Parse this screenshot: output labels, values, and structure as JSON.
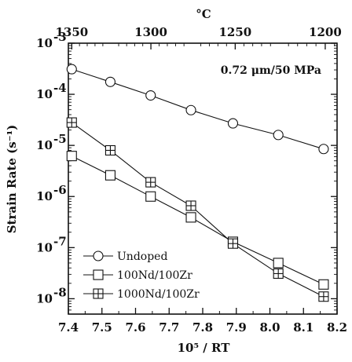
{
  "chart_data": {
    "type": "scatter",
    "xlabel": "10⁵ / RT",
    "ylabel": "Strain Rate (s⁻¹)",
    "top_axis_label": "°C",
    "annotation": "0.72 μm/50 MPa",
    "x_range": [
      7.4,
      8.2
    ],
    "x_ticks": [
      7.4,
      7.5,
      7.6,
      7.7,
      7.8,
      7.9,
      8.0,
      8.1,
      8.2
    ],
    "x_tick_labels": [
      "7.4",
      "7.5",
      "7.6",
      "7.7",
      "7.8",
      "7.9",
      "8.0",
      "8.1",
      "8.2"
    ],
    "y_scale": "log",
    "y_range": [
      5e-09,
      0.001
    ],
    "y_ticks": [
      {
        "value": 0.001,
        "exp": "-3"
      },
      {
        "value": 0.0001,
        "exp": "-4"
      },
      {
        "value": 1e-05,
        "exp": "-5"
      },
      {
        "value": 1e-06,
        "exp": "-6"
      },
      {
        "value": 1e-07,
        "exp": "-7"
      },
      {
        "value": 1e-08,
        "exp": "-8"
      }
    ],
    "y_tick_base": "10",
    "top_ticks": [
      {
        "celsius": 1350,
        "label": "1350"
      },
      {
        "celsius": 1300,
        "label": "1300"
      },
      {
        "celsius": 1250,
        "label": "1250"
      },
      {
        "celsius": 1200,
        "label": "1200"
      }
    ],
    "legend_position": "bottom-left",
    "series": [
      {
        "name": "Undoped",
        "marker": "circle",
        "x": [
          7.41,
          7.525,
          7.645,
          7.765,
          7.89,
          8.025,
          8.16
        ],
        "y": [
          0.00031,
          0.000175,
          9.5e-05,
          4.9e-05,
          2.7e-05,
          1.6e-05,
          8.5e-06
        ]
      },
      {
        "name": "100Nd/100Zr",
        "marker": "square",
        "x": [
          7.41,
          7.525,
          7.645,
          7.765,
          7.89,
          8.025,
          8.16
        ],
        "y": [
          6.2e-06,
          2.6e-06,
          1e-06,
          3.9e-07,
          1.3e-07,
          5e-08,
          1.9e-08
        ]
      },
      {
        "name": "1000Nd/100Zr",
        "marker": "square-plus",
        "x": [
          7.41,
          7.525,
          7.645,
          7.765,
          7.89,
          8.025,
          8.16
        ],
        "y": [
          2.8e-05,
          8e-06,
          1.9e-06,
          6.6e-07,
          1.2e-07,
          3.1e-08,
          1.1e-08
        ]
      }
    ]
  }
}
